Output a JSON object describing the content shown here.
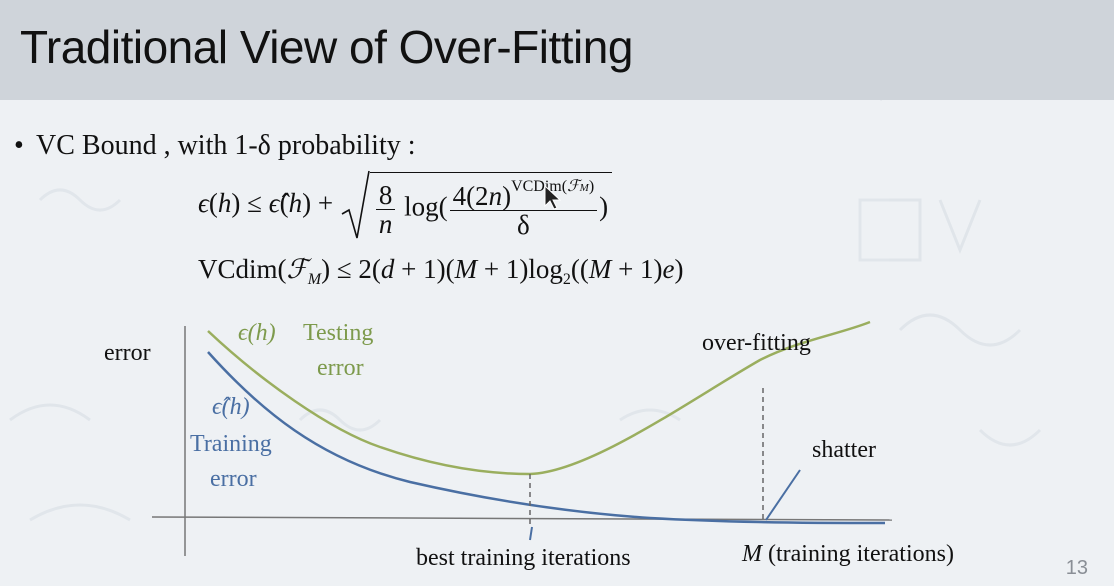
{
  "slide": {
    "title": "Traditional View of Over-Fitting",
    "bullet": "VC Bound , with 1-δ probability :",
    "page_number": "13"
  },
  "diagram": {
    "y_axis_label": "error",
    "testing_symbol": "ϵ(h)",
    "testing_label_line1": "Testing",
    "testing_label_line2": "error",
    "training_symbol": "ϵ̂(h)",
    "training_label_line1": "Training",
    "training_label_line2": "error",
    "overfitting_label": "over-fitting",
    "shatter_label": "shatter",
    "best_label": "best training iterations",
    "x_axis_M": "M",
    "x_axis_rest": " (training iterations)"
  },
  "colors": {
    "testing_curve": "#9aae5e",
    "training_curve": "#4a6fa3",
    "title_bar": "#cfd4da"
  }
}
